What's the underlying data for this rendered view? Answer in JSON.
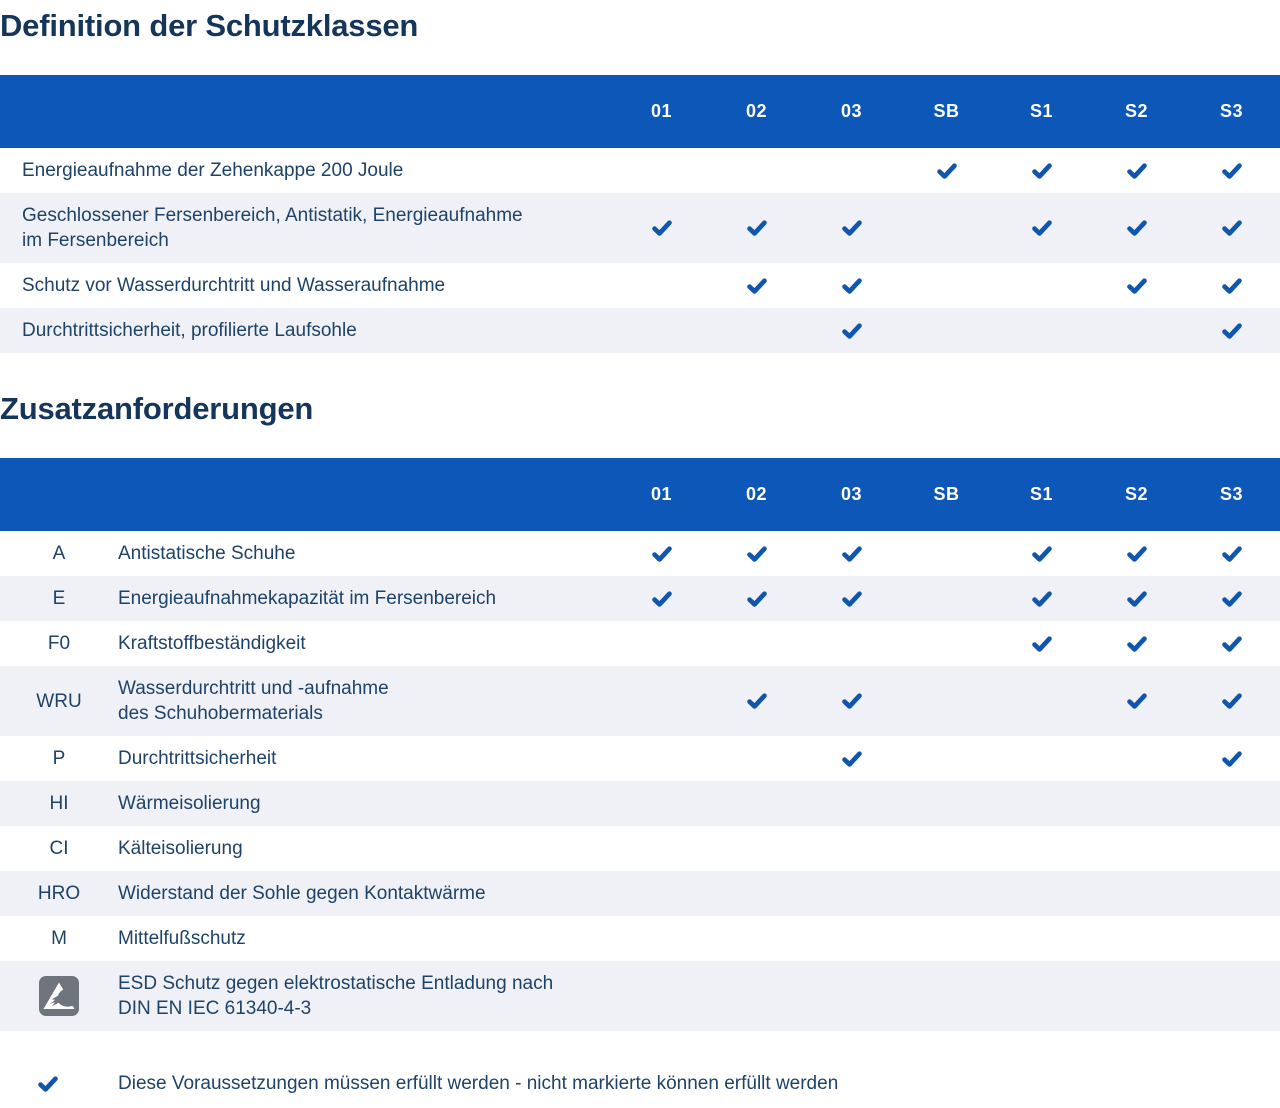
{
  "colors": {
    "header_blue": "#0d57b8",
    "check_blue": "#1156ae",
    "title_navy": "#16355a",
    "text_navy": "#1e4268",
    "row_alt_bg": "#eff1f6",
    "esd_icon_gray": "#6e757c"
  },
  "columns": [
    "01",
    "02",
    "03",
    "SB",
    "S1",
    "S2",
    "S3"
  ],
  "section1": {
    "title": "Definition der Schutzklassen",
    "rows": [
      {
        "lines": [
          "Energieaufnahme der Zehenkappe 200 Joule"
        ],
        "checks": [
          "SB",
          "S1",
          "S2",
          "S3"
        ]
      },
      {
        "lines": [
          "Geschlossener Fersenbereich, Antistatik, Energieaufnahme",
          "im Fersenbereich"
        ],
        "checks": [
          "01",
          "02",
          "03",
          "S1",
          "S2",
          "S3"
        ]
      },
      {
        "lines": [
          "Schutz vor Wasserdurchtritt und Wasseraufnahme"
        ],
        "checks": [
          "02",
          "03",
          "S2",
          "S3"
        ]
      },
      {
        "lines": [
          "Durchtrittsicherheit, profilierte Laufsohle"
        ],
        "checks": [
          "03",
          "S3"
        ]
      }
    ]
  },
  "section2": {
    "title": "Zusatzanforderungen",
    "rows": [
      {
        "code": "A",
        "lines": [
          "Antistatische Schuhe"
        ],
        "checks": [
          "01",
          "02",
          "03",
          "S1",
          "S2",
          "S3"
        ]
      },
      {
        "code": "E",
        "lines": [
          "Energieaufnahmekapazität im Fersenbereich"
        ],
        "checks": [
          "01",
          "02",
          "03",
          "S1",
          "S2",
          "S3"
        ]
      },
      {
        "code": "F0",
        "lines": [
          "Kraftstoffbeständigkeit"
        ],
        "checks": [
          "S1",
          "S2",
          "S3"
        ]
      },
      {
        "code": "WRU",
        "lines": [
          "Wasserdurchtritt und -aufnahme",
          "des Schuhobermaterials"
        ],
        "checks": [
          "02",
          "03",
          "S2",
          "S3"
        ]
      },
      {
        "code": "P",
        "lines": [
          "Durchtrittsicherheit"
        ],
        "checks": [
          "03",
          "S3"
        ]
      },
      {
        "code": "HI",
        "lines": [
          "Wärmeisolierung"
        ],
        "checks": []
      },
      {
        "code": "CI",
        "lines": [
          "Kälteisolierung"
        ],
        "checks": []
      },
      {
        "code": "HRO",
        "lines": [
          "Widerstand der Sohle gegen Kontaktwärme"
        ],
        "checks": []
      },
      {
        "code": "M",
        "lines": [
          "Mittelfußschutz"
        ],
        "checks": []
      },
      {
        "code": null,
        "icon": "esd-icon",
        "lines": [
          "ESD Schutz gegen elektrostatische Entladung nach",
          "DIN EN IEC 61340-4-3"
        ],
        "checks": []
      }
    ]
  },
  "legend": {
    "text": "Diese Voraussetzungen müssen erfüllt werden - nicht markierte können erfüllt werden"
  }
}
